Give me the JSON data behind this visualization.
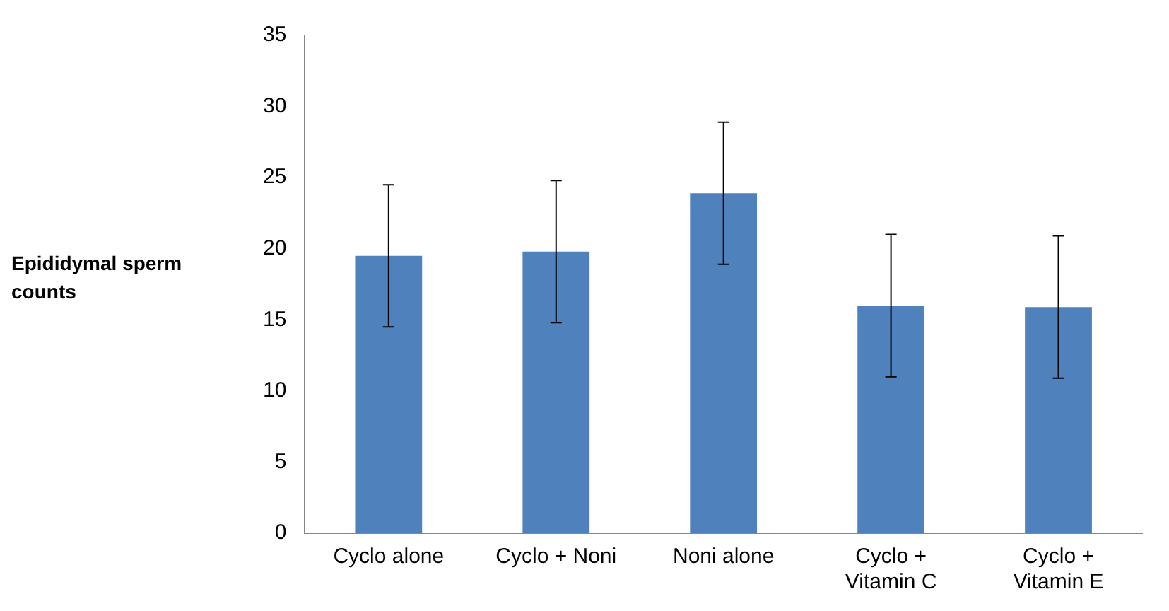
{
  "chart_data": {
    "type": "bar",
    "ylabel": "Epididymal sperm counts",
    "categories": [
      "Cyclo alone",
      "Cyclo + Noni",
      "Noni alone",
      "Cyclo + Vitamin C",
      "Cyclo + Vitamin E"
    ],
    "values": [
      19.5,
      19.8,
      23.9,
      16,
      15.9
    ],
    "errors": [
      5,
      5,
      5,
      5,
      5
    ],
    "color": "#4f81bd",
    "ylim": [
      0,
      35
    ],
    "yticks": [
      0,
      5,
      10,
      15,
      20,
      25,
      30,
      35
    ],
    "grid": false,
    "legend": false
  }
}
